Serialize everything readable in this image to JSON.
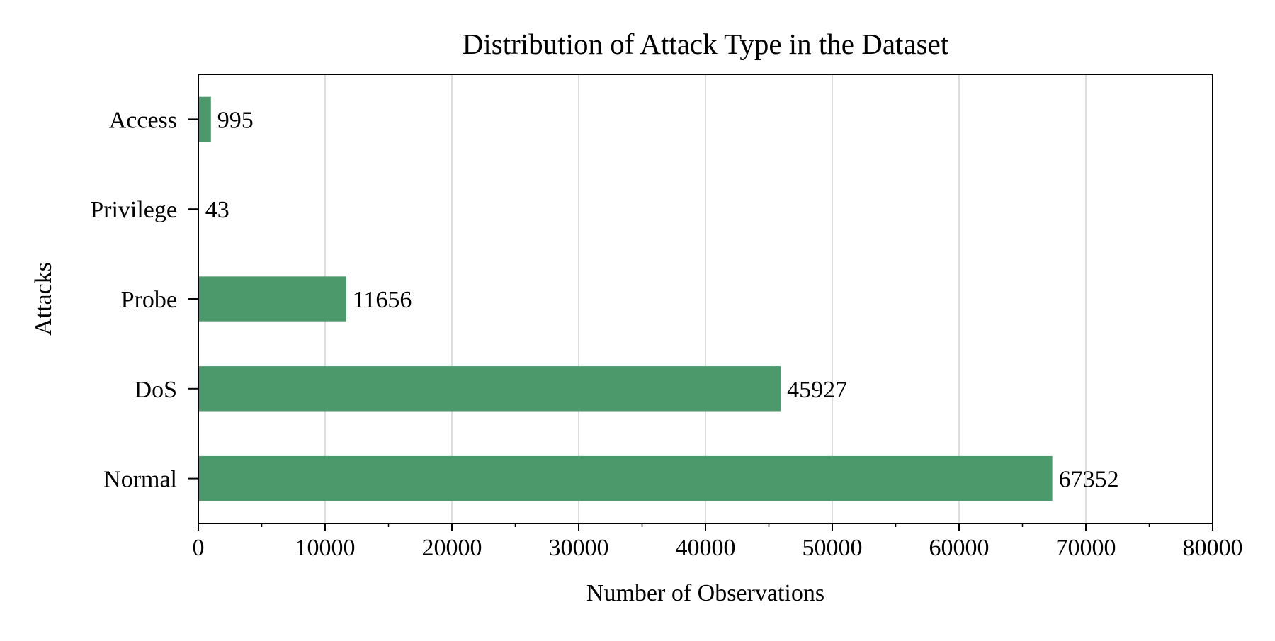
{
  "chart_data": {
    "type": "bar",
    "orientation": "horizontal",
    "title": "Distribution of Attack Type in the Dataset",
    "xlabel": "Number of Observations",
    "ylabel": "Attacks",
    "categories": [
      "Normal",
      "DoS",
      "Probe",
      "Privilege",
      "Access"
    ],
    "values": [
      67352,
      45927,
      11656,
      43,
      995
    ],
    "data_labels": [
      "67352",
      "45927",
      "11656",
      "43",
      "995"
    ],
    "xlim": [
      0,
      80000
    ],
    "xticks": [
      0,
      10000,
      20000,
      30000,
      40000,
      50000,
      60000,
      70000,
      80000
    ],
    "xtick_labels": [
      "0",
      "10000",
      "20000",
      "30000",
      "40000",
      "50000",
      "60000",
      "70000",
      "80000"
    ],
    "grid": "vertical",
    "bar_color": "#4c9a6b",
    "grid_color": "#bdbdbd"
  }
}
